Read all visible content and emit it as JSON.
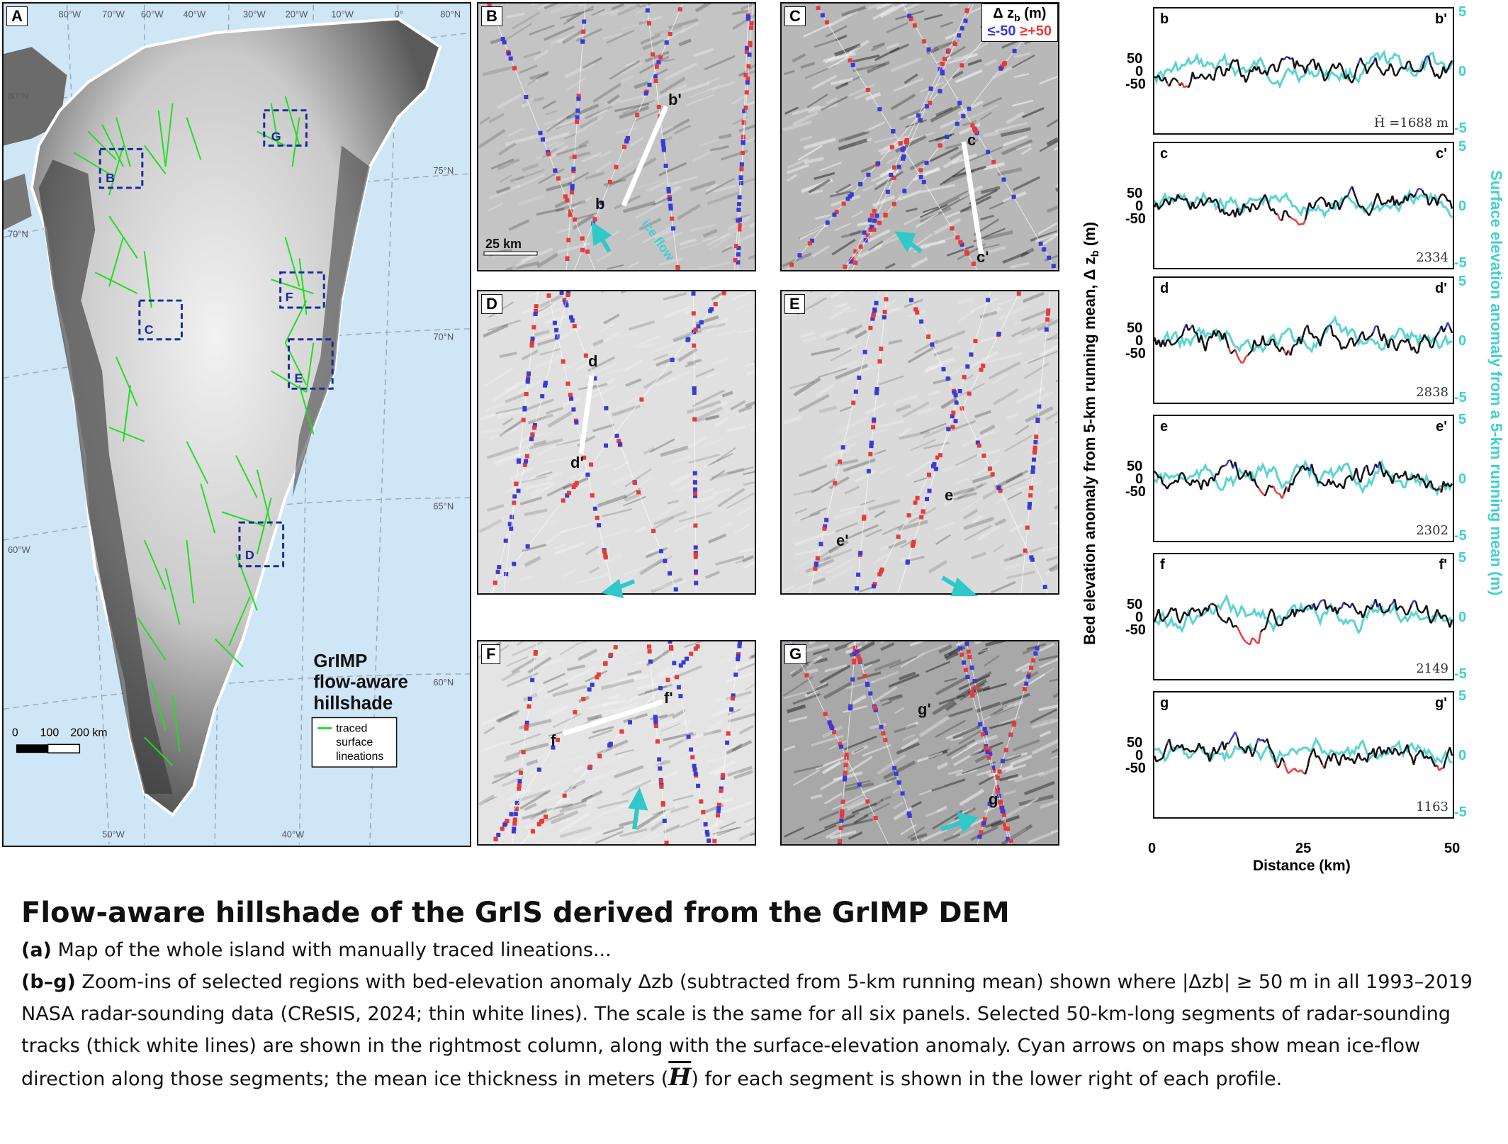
{
  "map_panel": {
    "label": "A",
    "lon_labels": [
      "80°W",
      "70°W",
      "60°W",
      "40°W",
      "30°W",
      "20°W",
      "10°W",
      "0°",
      "80°N",
      "50°W",
      "40°W",
      "60°W"
    ],
    "lat_labels": [
      "80°N",
      "70°N",
      "75°N",
      "70°N",
      "65°N",
      "60°N",
      "60°W"
    ],
    "boxes": [
      "B",
      "G",
      "C",
      "F",
      "E",
      "D"
    ],
    "title_lines": [
      "GrIMP",
      "flow-aware",
      "hillshade"
    ],
    "scale_labels": [
      "0",
      "100",
      "200 km"
    ],
    "legend_lines": [
      "traced",
      "surface",
      "lineations"
    ]
  },
  "zoom_panels": [
    {
      "label": "B",
      "points": [
        "b'",
        "b"
      ],
      "scalebar": "25 km",
      "ice_flow": "ice flow"
    },
    {
      "label": "C",
      "points": [
        "c",
        "c'"
      ],
      "legend": {
        "title": "Δ z",
        "sub": "b",
        "unit": "(m)",
        "neg": "≤-50",
        "pos": "≥+50"
      }
    },
    {
      "label": "D",
      "points": [
        "d",
        "d'"
      ]
    },
    {
      "label": "E",
      "points": [
        "e",
        "e'"
      ]
    },
    {
      "label": "F",
      "points": [
        "f",
        "f'"
      ]
    },
    {
      "label": "G",
      "points": [
        "g'",
        "g"
      ]
    }
  ],
  "profiles": [
    {
      "start": "b",
      "end": "b'",
      "thickness": "H̄ =1688 m",
      "left_ticks": [
        "50",
        "0",
        "-50"
      ],
      "right_ticks": [
        "5",
        "0",
        "-5"
      ]
    },
    {
      "start": "c",
      "end": "c'",
      "thickness": "2334",
      "left_ticks": [
        "50",
        "0",
        "-50"
      ],
      "right_ticks": [
        "5",
        "0",
        "-5"
      ]
    },
    {
      "start": "d",
      "end": "d'",
      "thickness": "2838",
      "left_ticks": [
        "50",
        "0",
        "-50"
      ],
      "right_ticks": [
        "5",
        "0",
        "-5"
      ]
    },
    {
      "start": "e",
      "end": "e'",
      "thickness": "2302",
      "left_ticks": [
        "50",
        "0",
        "-50"
      ],
      "right_ticks": [
        "5",
        "0",
        "-5"
      ]
    },
    {
      "start": "f",
      "end": "f'",
      "thickness": "2149",
      "left_ticks": [
        "50",
        "0",
        "-50"
      ],
      "right_ticks": [
        "5",
        "0",
        "-5"
      ]
    },
    {
      "start": "g",
      "end": "g'",
      "thickness": "1163",
      "left_ticks": [
        "50",
        "0",
        "-50"
      ],
      "right_ticks": [
        "5",
        "0",
        "-5"
      ]
    }
  ],
  "profile_axes": {
    "x_ticks": [
      "0",
      "25",
      "50"
    ],
    "xlabel": "Distance (km)",
    "ylabel_left": "Bed elevation anomaly from 5-km running mean, Δ z",
    "ylabel_left_sub": "b",
    "ylabel_left_unit": "(m)",
    "ylabel_right": "Surface elevation anomaly from a 5-km running mean (m)"
  },
  "colors": {
    "red": "#e83a3a",
    "blue": "#3a3ad8",
    "cyan": "#5cd3d3",
    "green": "#22dd22",
    "ocean": "#cfe6f7"
  },
  "caption": {
    "title": "Flow-aware hillshade of the GrIS derived from the GrIMP DEM",
    "a_tag": "(a)",
    "a_text": " Map of the whole island with manually traced lineations...",
    "bg_tag": "(b–g)",
    "bg_text_1": " Zoom-ins of selected regions with bed-elevation anomaly Δzb (subtracted from 5-km running mean) shown where |Δzb| ≥ 50 m in all 1993–2019 NASA radar-sounding data (CReSIS, 2024; thin white lines). The scale is the same for all six panels. Selected 50-km-long segments of radar-sounding tracks (thick white lines) are shown in the rightmost column, along with the surface-elevation anomaly. Cyan arrows on maps show mean ice-flow direction along those segments; the mean ice thickness in meters (",
    "bg_symbol": "H",
    "bg_text_2": ") for each segment is shown in the lower right of each profile."
  }
}
